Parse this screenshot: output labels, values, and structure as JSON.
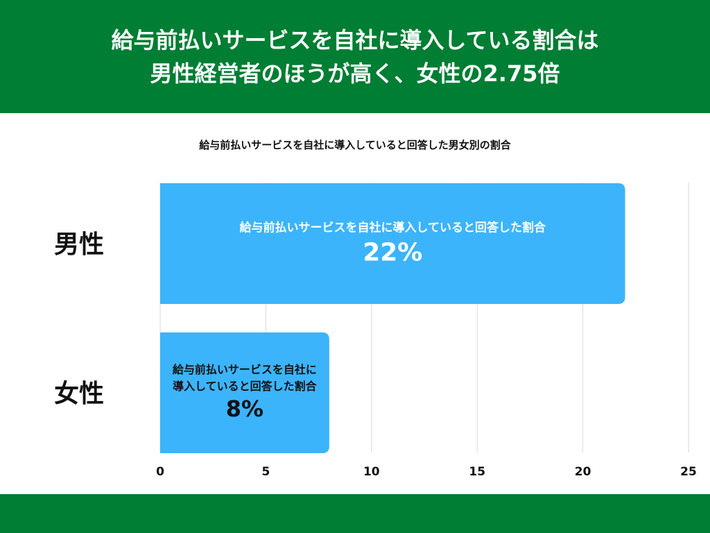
{
  "header": {
    "title_line1": "給与前払いサービスを自社に導入している割合は",
    "title_line2": "男性経営者のほうが高く、女性の2.75倍"
  },
  "colors": {
    "brand_green": "#007e33",
    "bar": "#3bb4fb",
    "grid": "#d9d9d9"
  },
  "chart_data": {
    "type": "bar",
    "orientation": "horizontal",
    "title": "給与前払いサービスを自社に導入していると回答した男女別の割合",
    "categories": [
      "男性",
      "女性"
    ],
    "values": [
      22,
      8
    ],
    "bar_labels": [
      "給与前払いサービスを自社に導入していると回答した割合",
      "給与前払いサービスを自社に導入していると回答した割合"
    ],
    "value_labels": [
      "22%",
      "8%"
    ],
    "xlim": [
      0,
      25
    ],
    "xticks": [
      0,
      5,
      10,
      15,
      20,
      25
    ],
    "grid": true
  }
}
